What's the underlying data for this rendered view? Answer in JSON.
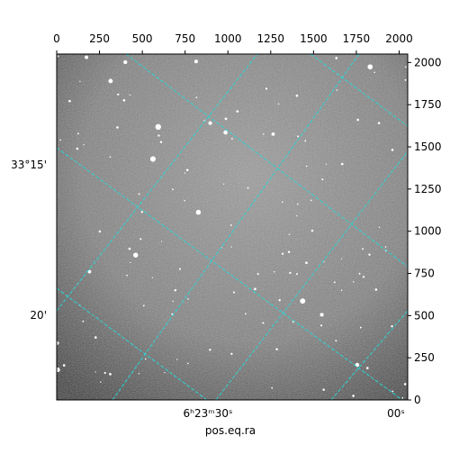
{
  "chart_data": {
    "type": "image",
    "xlabel": "pos.eq.ra",
    "xlim": [
      0,
      2050
    ],
    "xticks": [
      0,
      250,
      500,
      750,
      1000,
      1250,
      1500,
      1750,
      2000
    ],
    "ylim": [
      0,
      2050
    ],
    "yticks": [
      0,
      250,
      500,
      750,
      1000,
      1250,
      1500,
      1750,
      2000
    ],
    "ra_labels": [
      "6ʰ23ᵐ30ˢ",
      "00ˢ"
    ],
    "dec_labels": [
      "33°15'",
      "20'"
    ]
  }
}
